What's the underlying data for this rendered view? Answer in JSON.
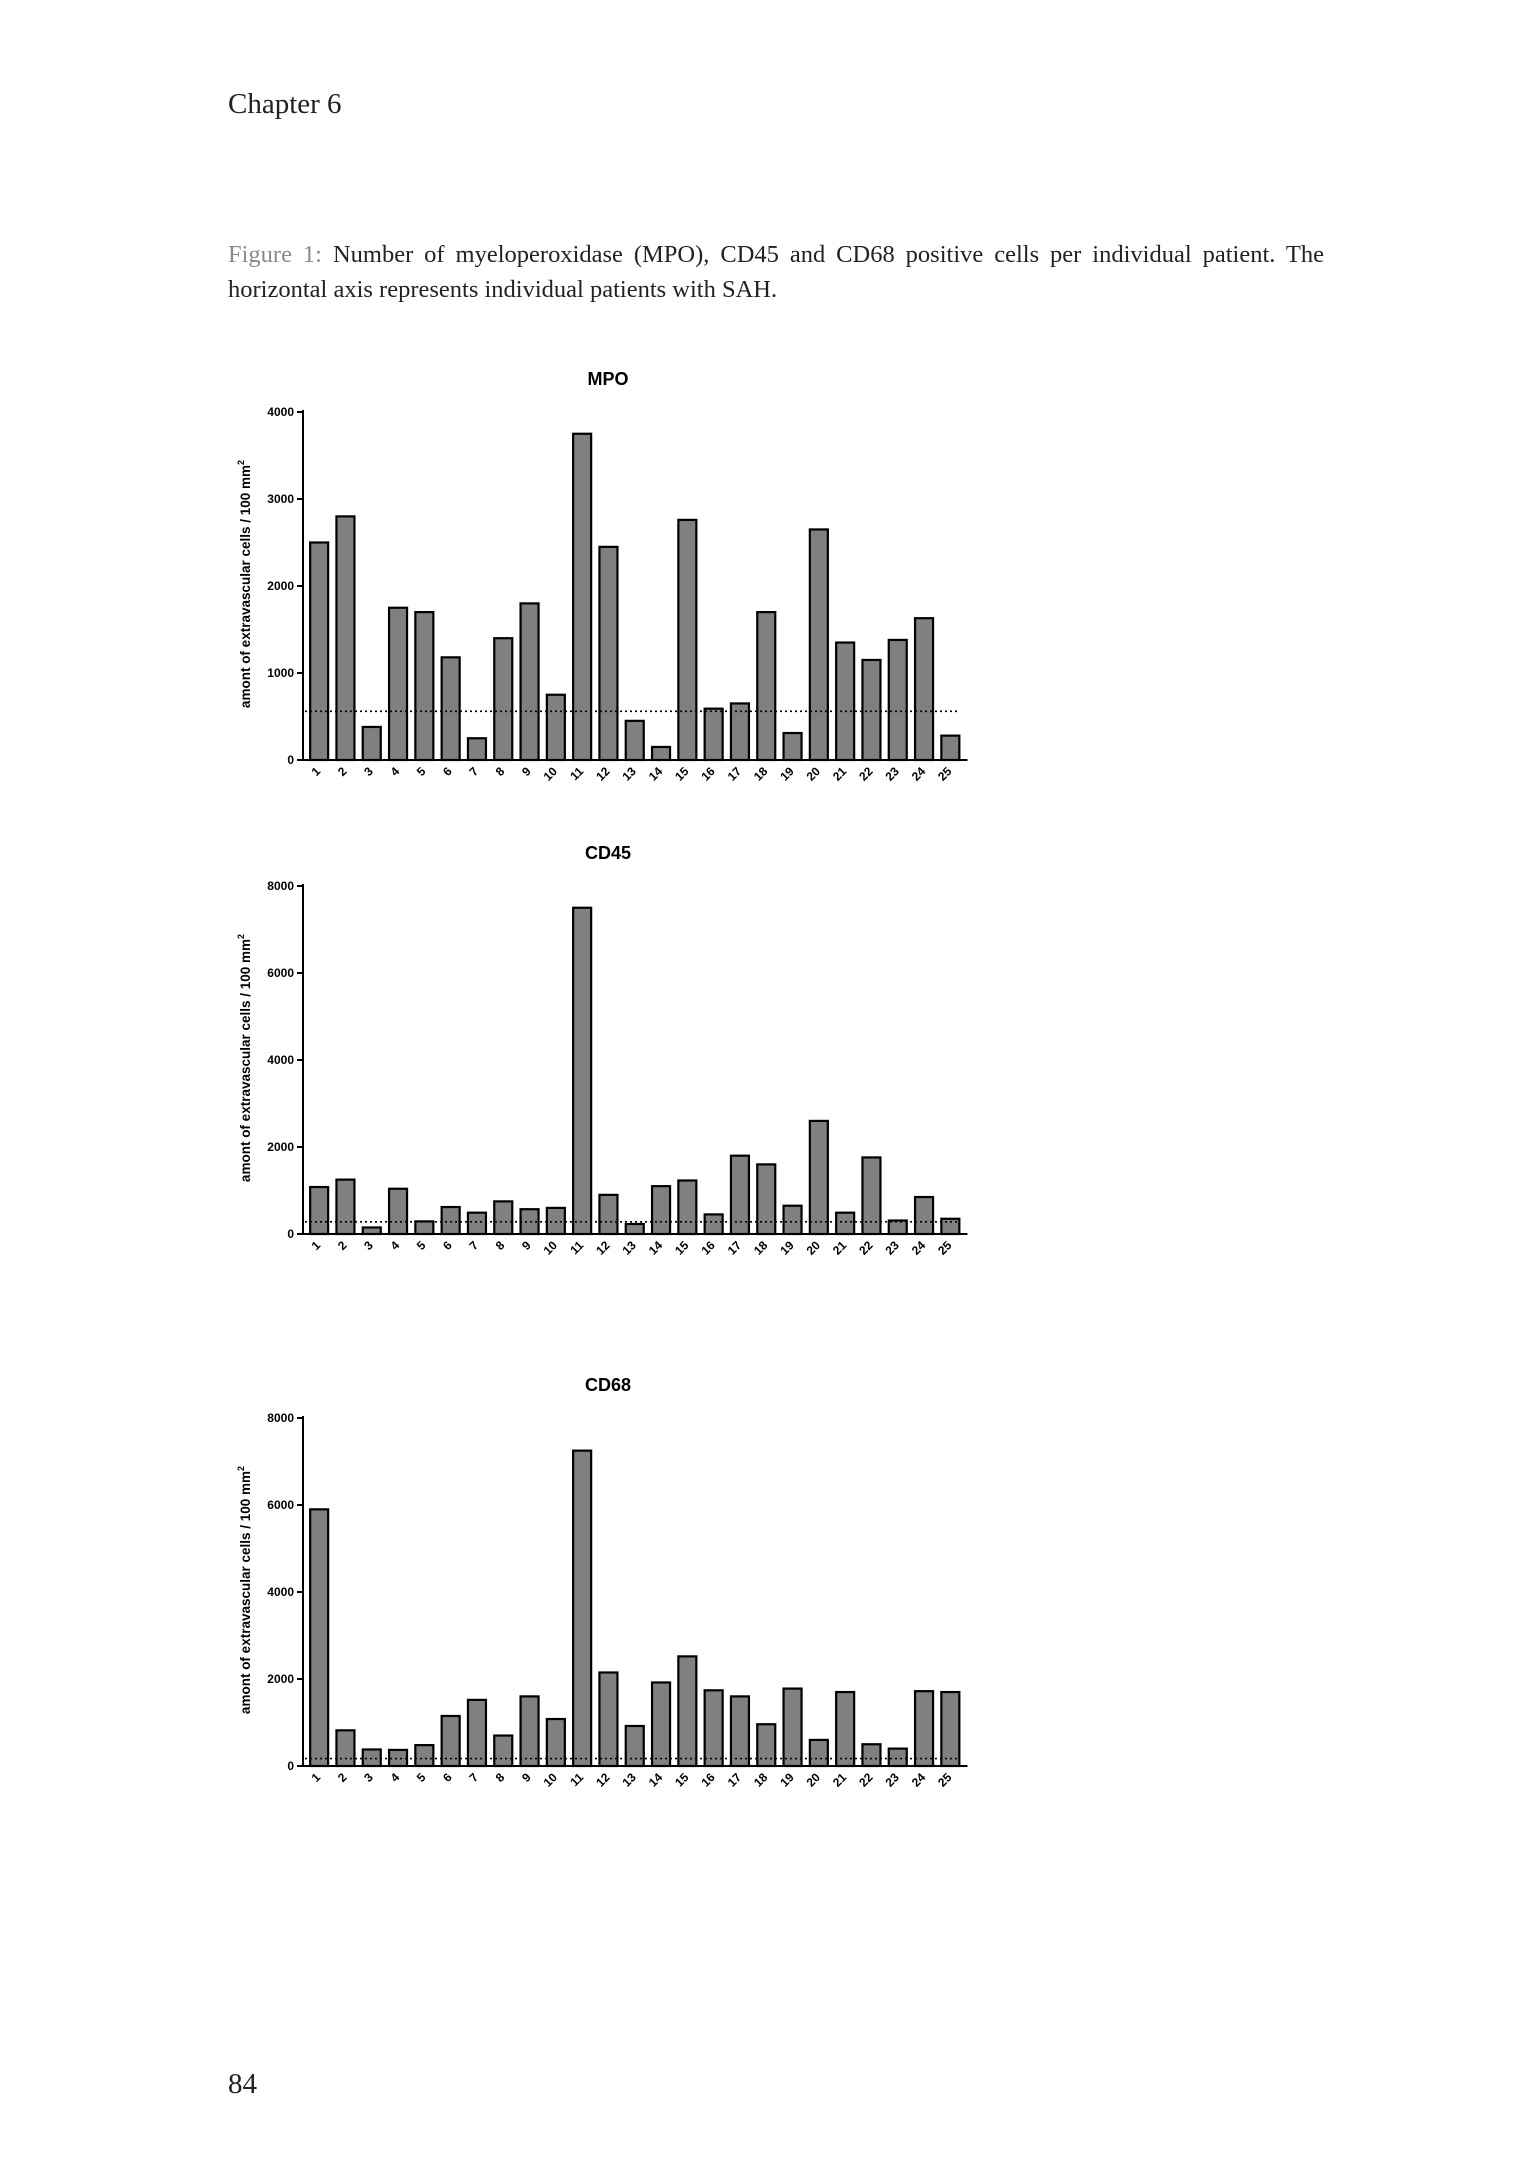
{
  "page": {
    "chapter_header": "Chapter 6",
    "caption_label": "Figure 1:",
    "caption_text": " Number of myeloperoxidase (MPO), CD45 and CD68 positive cells per individual patient. The horizontal axis represents individual patients with SAH.",
    "page_number": "84"
  },
  "colors": {
    "bar_fill": "#808080",
    "bar_stroke": "#000000",
    "axis": "#000000",
    "reference_line": "#000000",
    "caption_label": "#8a8a8a"
  },
  "chart_data": [
    {
      "type": "bar",
      "title": "MPO",
      "ylabel": "amont of extravascular cells / 100 mm",
      "ylabel_superscript": "2",
      "xlabel": "",
      "categories": [
        "1",
        "2",
        "3",
        "4",
        "5",
        "6",
        "7",
        "8",
        "9",
        "10",
        "11",
        "12",
        "13",
        "14",
        "15",
        "16",
        "17",
        "18",
        "19",
        "20",
        "21",
        "22",
        "23",
        "24",
        "25"
      ],
      "values": [
        2500,
        2800,
        380,
        1750,
        1700,
        1180,
        250,
        1400,
        1800,
        750,
        3750,
        2450,
        450,
        150,
        2760,
        590,
        650,
        1700,
        310,
        2650,
        1350,
        1150,
        1380,
        1630,
        280
      ],
      "ylim": [
        0,
        4000
      ],
      "yticks": [
        0,
        1000,
        2000,
        3000,
        4000
      ],
      "reference_line": 560,
      "grid": false,
      "legend": "none"
    },
    {
      "type": "bar",
      "title": "CD45",
      "ylabel": "amont of extravascular cells / 100 mm",
      "ylabel_superscript": "2",
      "xlabel": "",
      "categories": [
        "1",
        "2",
        "3",
        "4",
        "5",
        "6",
        "7",
        "8",
        "9",
        "10",
        "11",
        "12",
        "13",
        "14",
        "15",
        "16",
        "17",
        "18",
        "19",
        "20",
        "21",
        "22",
        "23",
        "24",
        "25"
      ],
      "values": [
        1080,
        1250,
        150,
        1040,
        290,
        620,
        490,
        750,
        570,
        600,
        7500,
        900,
        230,
        1100,
        1230,
        450,
        1800,
        1600,
        650,
        2600,
        490,
        1760,
        310,
        850,
        350
      ],
      "ylim": [
        0,
        8000
      ],
      "yticks": [
        0,
        2000,
        4000,
        6000,
        8000
      ],
      "reference_line": 280,
      "grid": false,
      "legend": "none"
    },
    {
      "type": "bar",
      "title": "CD68",
      "ylabel": "amont of extravascular cells / 100 mm",
      "ylabel_superscript": "2",
      "xlabel": "",
      "categories": [
        "1",
        "2",
        "3",
        "4",
        "5",
        "6",
        "7",
        "8",
        "9",
        "10",
        "11",
        "12",
        "13",
        "14",
        "15",
        "16",
        "17",
        "18",
        "19",
        "20",
        "21",
        "22",
        "23",
        "24",
        "25"
      ],
      "values": [
        5900,
        820,
        380,
        370,
        480,
        1150,
        1520,
        700,
        1600,
        1080,
        7250,
        2150,
        920,
        1920,
        2520,
        1740,
        1600,
        960,
        1780,
        600,
        1700,
        500,
        400,
        1720,
        1700
      ],
      "ylim": [
        0,
        8000
      ],
      "yticks": [
        0,
        2000,
        4000,
        6000,
        8000
      ],
      "reference_line": 170,
      "grid": false,
      "legend": "none"
    }
  ]
}
